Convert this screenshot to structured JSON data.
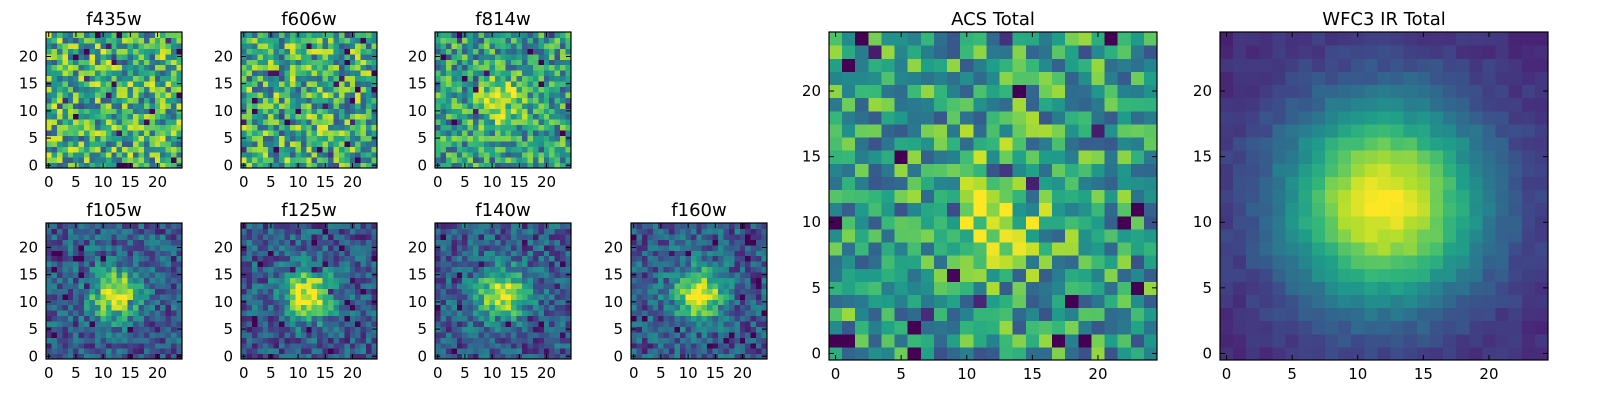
{
  "chart_data": [
    {
      "type": "heatmap",
      "title": "f435w",
      "map": "noisy",
      "xticks": [
        0,
        5,
        10,
        15,
        20
      ],
      "yticks": [
        0,
        5,
        10,
        15,
        20
      ],
      "grid": 25,
      "xlim": [
        0,
        25
      ],
      "ylim": [
        0,
        25
      ],
      "colormap": "viridis",
      "colorbar": false
    },
    {
      "type": "heatmap",
      "title": "f606w",
      "map": "noisy",
      "xticks": [
        0,
        5,
        10,
        15,
        20
      ],
      "yticks": [
        0,
        5,
        10,
        15,
        20
      ],
      "grid": 25,
      "xlim": [
        0,
        25
      ],
      "ylim": [
        0,
        25
      ],
      "colormap": "viridis",
      "colorbar": false
    },
    {
      "type": "heatmap",
      "title": "f814w",
      "map": "faint-source",
      "xticks": [
        0,
        5,
        10,
        15,
        20
      ],
      "yticks": [
        0,
        5,
        10,
        15,
        20
      ],
      "grid": 25,
      "xlim": [
        0,
        25
      ],
      "ylim": [
        0,
        25
      ],
      "colormap": "viridis",
      "colorbar": false
    },
    {
      "type": "heatmap",
      "title": "f105w",
      "map": "source",
      "xticks": [
        0,
        5,
        10,
        15,
        20
      ],
      "yticks": [
        0,
        5,
        10,
        15,
        20
      ],
      "grid": 25,
      "xlim": [
        0,
        25
      ],
      "ylim": [
        0,
        25
      ],
      "colormap": "viridis",
      "colorbar": false
    },
    {
      "type": "heatmap",
      "title": "f125w",
      "map": "source",
      "xticks": [
        0,
        5,
        10,
        15,
        20
      ],
      "yticks": [
        0,
        5,
        10,
        15,
        20
      ],
      "grid": 25,
      "xlim": [
        0,
        25
      ],
      "ylim": [
        0,
        25
      ],
      "colormap": "viridis",
      "colorbar": false
    },
    {
      "type": "heatmap",
      "title": "f140w",
      "map": "source",
      "xticks": [
        0,
        5,
        10,
        15,
        20
      ],
      "yticks": [
        0,
        5,
        10,
        15,
        20
      ],
      "grid": 25,
      "xlim": [
        0,
        25
      ],
      "ylim": [
        0,
        25
      ],
      "colormap": "viridis",
      "colorbar": false
    },
    {
      "type": "heatmap",
      "title": "f160w",
      "map": "source",
      "xticks": [
        0,
        5,
        10,
        15,
        20
      ],
      "yticks": [
        0,
        5,
        10,
        15,
        20
      ],
      "grid": 25,
      "xlim": [
        0,
        25
      ],
      "ylim": [
        0,
        25
      ],
      "colormap": "viridis",
      "colorbar": false
    },
    {
      "type": "heatmap",
      "title": "ACS Total",
      "map": "faint-source",
      "xticks": [
        0,
        5,
        10,
        15,
        20
      ],
      "yticks": [
        0,
        5,
        10,
        15,
        20
      ],
      "grid": 25,
      "xlim": [
        0,
        25
      ],
      "ylim": [
        0,
        25
      ],
      "colormap": "viridis",
      "colorbar": false
    },
    {
      "type": "heatmap",
      "title": "WFC3 IR Total",
      "map": "smooth-source",
      "xticks": [
        0,
        5,
        10,
        15,
        20
      ],
      "yticks": [
        0,
        5,
        10,
        15,
        20
      ],
      "grid": 25,
      "xlim": [
        0,
        25
      ],
      "ylim": [
        0,
        25
      ],
      "colormap": "viridis",
      "colorbar": false
    }
  ]
}
